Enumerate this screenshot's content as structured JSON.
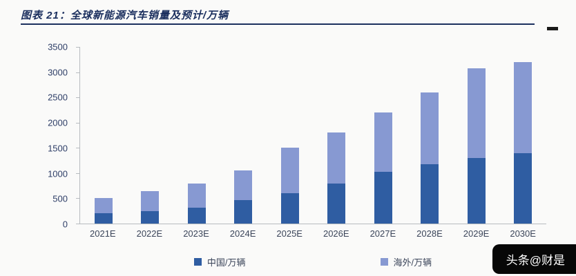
{
  "header": {
    "title": "图表 21：全球新能源汽车销量及预计/万辆"
  },
  "watermark": "头条@财是",
  "chart_data": {
    "type": "bar",
    "stacked": true,
    "title": "全球新能源汽车销量及预计/万辆",
    "categories": [
      "2021E",
      "2022E",
      "2023E",
      "2024E",
      "2025E",
      "2026E",
      "2027E",
      "2028E",
      "2029E",
      "2030E"
    ],
    "series": [
      {
        "name": "中国/万辆",
        "color": "#2f5da2",
        "values": [
          200,
          240,
          320,
          460,
          600,
          790,
          1030,
          1170,
          1300,
          1390
        ]
      },
      {
        "name": "海外/万辆",
        "color": "#8799d2",
        "values": [
          310,
          400,
          480,
          590,
          900,
          1010,
          1170,
          1430,
          1780,
          1810
        ]
      }
    ],
    "totals": [
      510,
      640,
      800,
      1050,
      1500,
      1800,
      2200,
      2600,
      3080,
      3200
    ],
    "xlabel": "",
    "ylabel": "",
    "ylim": [
      0,
      3500
    ],
    "yticks": [
      3500,
      3000,
      2500,
      2000,
      1500,
      1000,
      500,
      0
    ],
    "grid": false,
    "legend_position": "bottom"
  }
}
